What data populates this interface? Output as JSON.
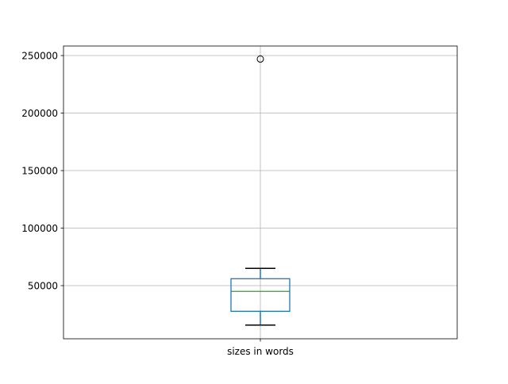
{
  "chart_data": {
    "type": "boxplot",
    "title": "",
    "xlabel": "",
    "ylabel": "",
    "categories": [
      "sizes in words"
    ],
    "boxes": [
      {
        "label": "sizes in words",
        "whisker_low": 15700,
        "q1": 27700,
        "median": 45000,
        "q3": 56000,
        "whisker_high": 65000,
        "outliers": [
          247000
        ]
      }
    ],
    "ylim": [
      3800,
      258300
    ],
    "yticks": [
      50000,
      100000,
      150000,
      200000,
      250000
    ],
    "ytick_labels": [
      "50000",
      "100000",
      "150000",
      "200000",
      "250000"
    ],
    "grid": true,
    "colors": {
      "box": "#1f77b4",
      "median": "#2ca02c",
      "whisker_cap": "#000000",
      "grid": "#b0b0b0"
    }
  }
}
